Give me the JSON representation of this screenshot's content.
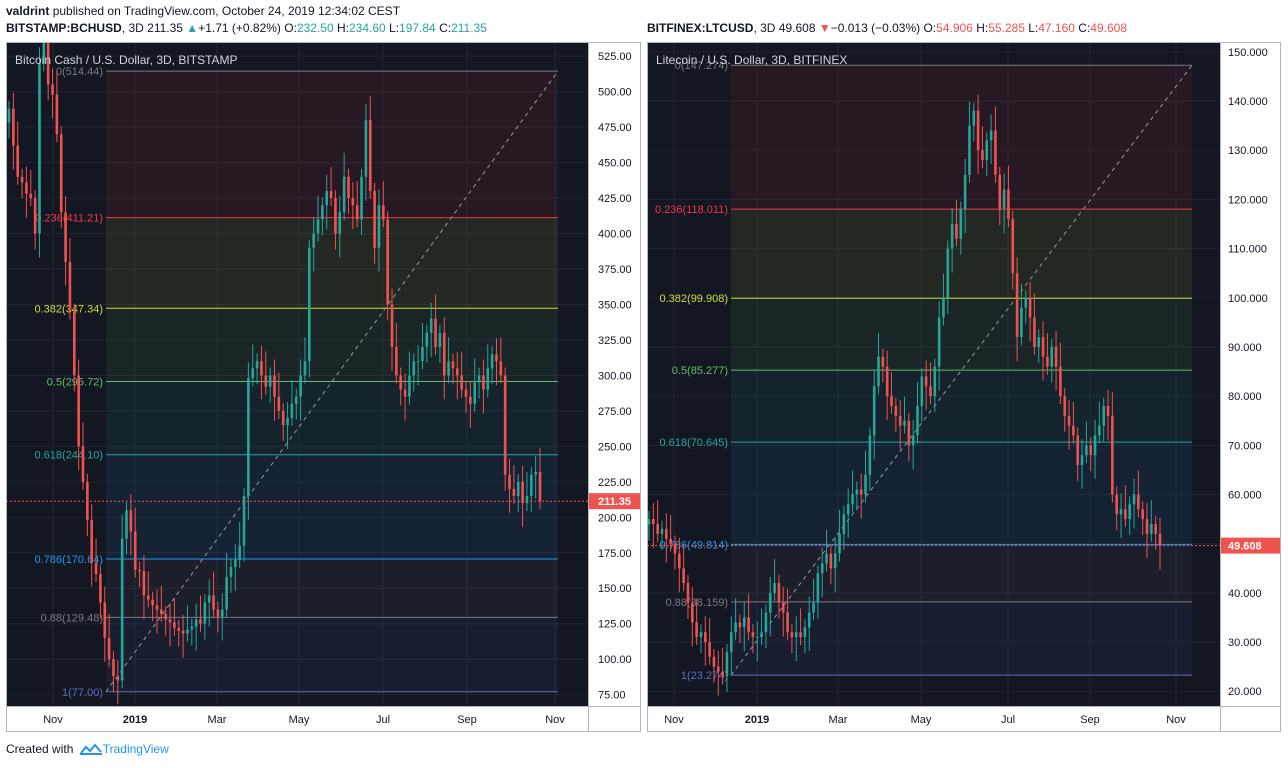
{
  "publish": {
    "author": "valdrint",
    "text": "published on TradingView.com, October 24, 2019 12:34:02 CEST"
  },
  "footer": {
    "created": "Created with",
    "brand": "TradingView"
  },
  "chart_data": [
    {
      "type": "candlestick",
      "symbol": "BITSTAMP:BCHUSD",
      "interval": "3D",
      "last": "211.35",
      "change": "+1.71 (+0.82%)",
      "change_dir": "up",
      "open": "232.50",
      "high": "234.60",
      "low": "197.84",
      "close": "211.35",
      "title": "Bitcoin Cash / U.S. Dollar, 3D, BITSTAMP",
      "y_ticks": [
        "525.00",
        "500.00",
        "475.00",
        "450.00",
        "425.00",
        "400.00",
        "375.00",
        "350.00",
        "325.00",
        "300.00",
        "275.00",
        "250.00",
        "225.00",
        "200.00",
        "175.00",
        "150.00",
        "125.00",
        "100.00",
        "75.00"
      ],
      "ylim": [
        67,
        535
      ],
      "x_ticks": [
        "Nov",
        "2019",
        "Mar",
        "May",
        "Jul",
        "Sep",
        "Nov"
      ],
      "price_label": "211.35",
      "price_value": 211.35,
      "fib": [
        {
          "label": "0(514.44)",
          "value": 514.44,
          "color": "#787b86"
        },
        {
          "label": "0.236(411.21)",
          "value": 411.21,
          "color": "#f23645"
        },
        {
          "label": "0.382(347.34)",
          "value": 347.34,
          "color": "#cddc39"
        },
        {
          "label": "0.5(295.72)",
          "value": 295.72,
          "color": "#66bb6a"
        },
        {
          "label": "0.618(244.10)",
          "value": 244.1,
          "color": "#26a69a"
        },
        {
          "label": "0.786(170.64)",
          "value": 170.64,
          "color": "#2196f3"
        },
        {
          "label": "0.88(129.48)",
          "value": 129.48,
          "color": "#787b86"
        },
        {
          "label": "1(77.00)",
          "value": 77.0,
          "color": "#5c6bc0"
        }
      ],
      "closes": [
        488,
        462,
        440,
        436,
        428,
        425,
        400,
        520,
        540,
        505,
        498,
        470,
        415,
        380,
        345,
        300,
        250,
        225,
        198,
        168,
        160,
        140,
        115,
        100,
        88,
        85,
        185,
        205,
        190,
        163,
        162,
        145,
        142,
        138,
        135,
        132,
        128,
        126,
        122,
        120,
        118,
        121,
        123,
        128,
        125,
        140,
        145,
        135,
        130,
        135,
        158,
        165,
        170,
        180,
        215,
        298,
        305,
        310,
        300,
        292,
        300,
        285,
        275,
        265,
        270,
        280,
        285,
        300,
        310,
        390,
        400,
        410,
        420,
        430,
        425,
        400,
        415,
        440,
        425,
        420,
        410,
        440,
        480,
        430,
        390,
        420,
        410,
        350,
        320,
        300,
        290,
        285,
        300,
        310,
        310,
        320,
        330,
        340,
        320,
        330,
        300,
        310,
        305,
        300,
        290,
        285,
        280,
        295,
        300,
        290,
        305,
        315,
        310,
        300,
        230,
        220,
        215,
        225,
        210,
        215,
        230,
        232,
        211.35
      ]
    },
    {
      "type": "candlestick",
      "symbol": "BITFINEX:LTCUSD",
      "interval": "3D",
      "last": "49.608",
      "change": "−0.013 (−0.03%)",
      "change_dir": "down",
      "open": "54.906",
      "high": "55.285",
      "low": "47.160",
      "close": "49.608",
      "title": "Litecoin / U.S. Dollar, 3D, BITFINEX",
      "y_ticks": [
        "150.000",
        "140.000",
        "130.000",
        "120.000",
        "110.000",
        "100.000",
        "90.000",
        "80.000",
        "70.000",
        "60.000",
        "50.000",
        "40.000",
        "30.000",
        "20.000"
      ],
      "ylim": [
        17,
        152
      ],
      "x_ticks": [
        "Nov",
        "2019",
        "Mar",
        "May",
        "Jul",
        "Sep",
        "Nov"
      ],
      "price_label": "49.608",
      "price_value": 49.608,
      "fib": [
        {
          "label": "0(147.274)",
          "value": 147.274,
          "color": "#787b86"
        },
        {
          "label": "0.236(118.011)",
          "value": 118.011,
          "color": "#f23645"
        },
        {
          "label": "0.382(99.908)",
          "value": 99.908,
          "color": "#cddc39"
        },
        {
          "label": "0.5(85.277)",
          "value": 85.277,
          "color": "#66bb6a"
        },
        {
          "label": "0.618(70.645)",
          "value": 70.645,
          "color": "#26a69a"
        },
        {
          "label": "0.786(49.814)",
          "value": 49.814,
          "color": "#2196f3"
        },
        {
          "label": "0.88(38.159)",
          "value": 38.159,
          "color": "#787b86"
        },
        {
          "label": "1(23.274)",
          "value": 23.274,
          "color": "#5c6bc0"
        }
      ],
      "closes": [
        55,
        54,
        52,
        53,
        51,
        50,
        48,
        45,
        42,
        38,
        34,
        31,
        32,
        30,
        27,
        25,
        24,
        23,
        28,
        32,
        34,
        33,
        35,
        32,
        31,
        31,
        32,
        36,
        40,
        42,
        38,
        36,
        32,
        31,
        32,
        31,
        33,
        36,
        38,
        44,
        46,
        48,
        45,
        48,
        52,
        56,
        58,
        60,
        61,
        60,
        64,
        72,
        82,
        88,
        86,
        80,
        78,
        76,
        74,
        75,
        70,
        72,
        78,
        84,
        82,
        80,
        86,
        96,
        100,
        110,
        115,
        112,
        118,
        125,
        135,
        138,
        130,
        128,
        132,
        134,
        125,
        118,
        122,
        116,
        105,
        92,
        98,
        100,
        96,
        90,
        92,
        88,
        86,
        90,
        86,
        80,
        76,
        74,
        72,
        66,
        68,
        70,
        68,
        72,
        74,
        78,
        76,
        60,
        56,
        57,
        55,
        58,
        60,
        57,
        55,
        52,
        54,
        52,
        49.608
      ]
    }
  ]
}
